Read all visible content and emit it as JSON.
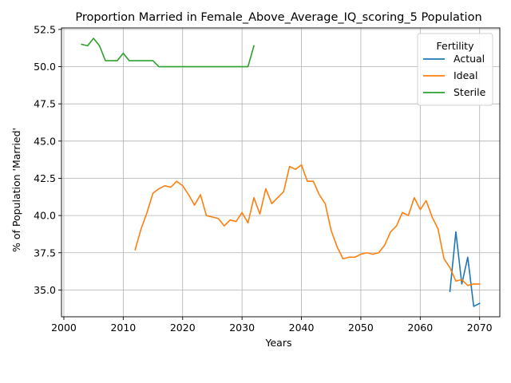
{
  "chart_data": {
    "type": "line",
    "title": "Proportion Married in Female_Above_Average_IQ_scoring_5 Population",
    "xlabel": "Years",
    "ylabel": "% of Population 'Married'",
    "xlim": [
      1999.6,
      2073.4
    ],
    "ylim": [
      33.2,
      52.6
    ],
    "xticks": [
      2000,
      2010,
      2020,
      2030,
      2040,
      2050,
      2060,
      2070
    ],
    "yticks": [
      35.0,
      37.5,
      40.0,
      42.5,
      45.0,
      47.5,
      50.0,
      52.5
    ],
    "grid": true,
    "legend": {
      "title": "Fertility",
      "placement": "top-right"
    },
    "series": [
      {
        "name": "Actual",
        "color": "#1f77b4",
        "x": [
          2065,
          2066,
          2067,
          2068,
          2069,
          2070
        ],
        "y": [
          34.9,
          38.9,
          35.4,
          37.2,
          33.9,
          34.1
        ]
      },
      {
        "name": "Ideal",
        "color": "#ff7f0e",
        "x": [
          2012,
          2013,
          2014,
          2015,
          2016,
          2017,
          2018,
          2019,
          2020,
          2021,
          2022,
          2023,
          2024,
          2025,
          2026,
          2027,
          2028,
          2029,
          2030,
          2031,
          2032,
          2033,
          2034,
          2035,
          2036,
          2037,
          2038,
          2039,
          2040,
          2041,
          2042,
          2043,
          2044,
          2045,
          2046,
          2047,
          2048,
          2049,
          2050,
          2051,
          2052,
          2053,
          2054,
          2055,
          2056,
          2057,
          2058,
          2059,
          2060,
          2061,
          2062,
          2063,
          2064,
          2065,
          2066,
          2067,
          2068,
          2069,
          2070
        ],
        "y": [
          37.7,
          39.1,
          40.2,
          41.5,
          41.8,
          42.0,
          41.9,
          42.3,
          42.0,
          41.4,
          40.7,
          41.4,
          40.0,
          39.9,
          39.8,
          39.3,
          39.7,
          39.6,
          40.2,
          39.5,
          41.2,
          40.1,
          41.8,
          40.8,
          41.2,
          41.6,
          43.3,
          43.1,
          43.4,
          42.3,
          42.3,
          41.4,
          40.8,
          39.0,
          37.9,
          37.1,
          37.2,
          37.2,
          37.4,
          37.5,
          37.4,
          37.5,
          38.0,
          38.9,
          39.3,
          40.2,
          40.0,
          41.2,
          40.4,
          41.0,
          39.9,
          39.1,
          37.1,
          36.5,
          35.6,
          35.7,
          35.3,
          35.4,
          35.4
        ]
      },
      {
        "name": "Sterile",
        "color": "#2ca02c",
        "x": [
          2003,
          2004,
          2005,
          2006,
          2007,
          2008,
          2009,
          2010,
          2011,
          2012,
          2013,
          2014,
          2015,
          2016,
          2017,
          2018,
          2019,
          2020,
          2021,
          2022,
          2023,
          2024,
          2025,
          2026,
          2027,
          2028,
          2029,
          2030,
          2031,
          2032
        ],
        "y": [
          51.5,
          51.4,
          51.9,
          51.4,
          50.4,
          50.4,
          50.4,
          50.9,
          50.4,
          50.4,
          50.4,
          50.4,
          50.4,
          50.0,
          50.0,
          50.0,
          50.0,
          50.0,
          50.0,
          50.0,
          50.0,
          50.0,
          50.0,
          50.0,
          50.0,
          50.0,
          50.0,
          50.0,
          50.0,
          51.4
        ]
      }
    ]
  }
}
